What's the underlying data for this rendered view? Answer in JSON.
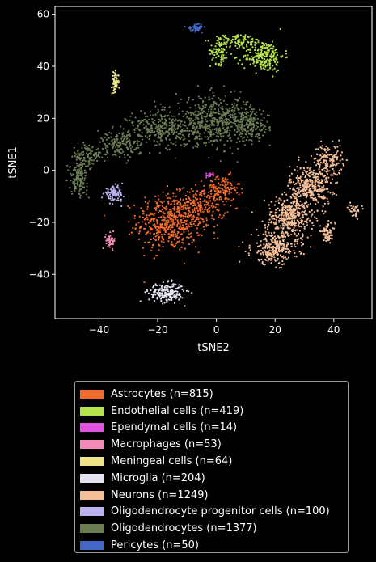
{
  "chart_data": {
    "type": "scatter",
    "title": "",
    "xlabel": "tSNE2",
    "ylabel": "tSNE1",
    "xlim": [
      -55,
      53
    ],
    "ylim": [
      -57,
      63
    ],
    "xticks": [
      -40,
      -20,
      0,
      20,
      40
    ],
    "yticks": [
      -40,
      -20,
      0,
      20,
      40,
      60
    ],
    "xtick_labels": [
      "−40",
      "−20",
      "0",
      "20",
      "40"
    ],
    "ytick_labels": [
      "−40",
      "−20",
      "0",
      "20",
      "40",
      "60"
    ],
    "grid": false,
    "legend_position": "below",
    "series": [
      {
        "name": "Astrocytes (n=815)",
        "color": "#f26b2b",
        "count": 815,
        "clusters": [
          {
            "cx": -16,
            "cy": -20,
            "sx": 5.5,
            "sy": 5.5,
            "w": 0.6
          },
          {
            "cx": -5,
            "cy": -14,
            "sx": 4,
            "sy": 4,
            "w": 0.25
          },
          {
            "cx": 2,
            "cy": -7,
            "sx": 3,
            "sy": 2.5,
            "w": 0.15
          }
        ]
      },
      {
        "name": "Endothelial cells (n=419)",
        "color": "#b5e24a",
        "count": 419,
        "clusters": [
          {
            "cx": 16,
            "cy": 44,
            "sx": 3.5,
            "sy": 3,
            "w": 0.6
          },
          {
            "cx": 7,
            "cy": 50,
            "sx": 4,
            "sy": 1.2,
            "w": 0.2
          },
          {
            "cx": 1,
            "cy": 46,
            "sx": 1.5,
            "sy": 2.5,
            "w": 0.2
          }
        ]
      },
      {
        "name": "Ependymal cells (n=14)",
        "color": "#e052e0",
        "count": 14,
        "clusters": [
          {
            "cx": -2.5,
            "cy": -2,
            "sx": 0.5,
            "sy": 0.6,
            "w": 1
          }
        ]
      },
      {
        "name": "Macrophages (n=53)",
        "color": "#f28ab6",
        "count": 53,
        "clusters": [
          {
            "cx": -36,
            "cy": -27,
            "sx": 0.8,
            "sy": 1.4,
            "w": 1
          }
        ]
      },
      {
        "name": "Meningeal cells (n=64)",
        "color": "#ede48a",
        "count": 64,
        "clusters": [
          {
            "cx": -34.5,
            "cy": 34,
            "sx": 0.6,
            "sy": 1.8,
            "w": 1
          }
        ]
      },
      {
        "name": "Microglia (n=204)",
        "color": "#e3e3f2",
        "count": 204,
        "clusters": [
          {
            "cx": -17,
            "cy": -47,
            "sx": 3,
            "sy": 1.8,
            "w": 1
          }
        ]
      },
      {
        "name": "Neurons (n=1249)",
        "color": "#f5bf98",
        "count": 1249,
        "clusters": [
          {
            "cx": 38,
            "cy": 4,
            "sx": 2.5,
            "sy": 3,
            "w": 0.12
          },
          {
            "cx": 32,
            "cy": -6,
            "sx": 3.5,
            "sy": 4,
            "w": 0.28
          },
          {
            "cx": 25,
            "cy": -18,
            "sx": 4,
            "sy": 4,
            "w": 0.3
          },
          {
            "cx": 20,
            "cy": -30,
            "sx": 4,
            "sy": 3,
            "w": 0.22
          },
          {
            "cx": 38,
            "cy": -24,
            "sx": 1.2,
            "sy": 1.8,
            "w": 0.05
          },
          {
            "cx": 47,
            "cy": -15,
            "sx": 1.2,
            "sy": 1.2,
            "w": 0.03
          }
        ]
      },
      {
        "name": "Oligodendrocyte progenitor cells (n=100)",
        "color": "#bcb4f0",
        "count": 100,
        "clusters": [
          {
            "cx": -35,
            "cy": -9,
            "sx": 1.6,
            "sy": 1.4,
            "w": 1
          }
        ]
      },
      {
        "name": "Oligodendrocytes (n=1377)",
        "color": "#6b7c53",
        "count": 1377,
        "clusters": [
          {
            "cx": 0,
            "cy": 19,
            "sx": 7,
            "sy": 4.5,
            "w": 0.38
          },
          {
            "cx": -18,
            "cy": 16,
            "sx": 6,
            "sy": 3.5,
            "w": 0.22
          },
          {
            "cx": 12,
            "cy": 17,
            "sx": 3,
            "sy": 3,
            "w": 0.1
          },
          {
            "cx": -33,
            "cy": 10,
            "sx": 4,
            "sy": 2.5,
            "w": 0.12
          },
          {
            "cx": -44,
            "cy": 5,
            "sx": 2.5,
            "sy": 2.5,
            "w": 0.08
          },
          {
            "cx": -47,
            "cy": -3,
            "sx": 1.5,
            "sy": 3,
            "w": 0.1
          }
        ]
      },
      {
        "name": "Pericytes (n=50)",
        "color": "#4466c4",
        "count": 50,
        "clusters": [
          {
            "cx": -7,
            "cy": 55,
            "sx": 1.3,
            "sy": 0.7,
            "w": 1
          }
        ]
      }
    ]
  }
}
